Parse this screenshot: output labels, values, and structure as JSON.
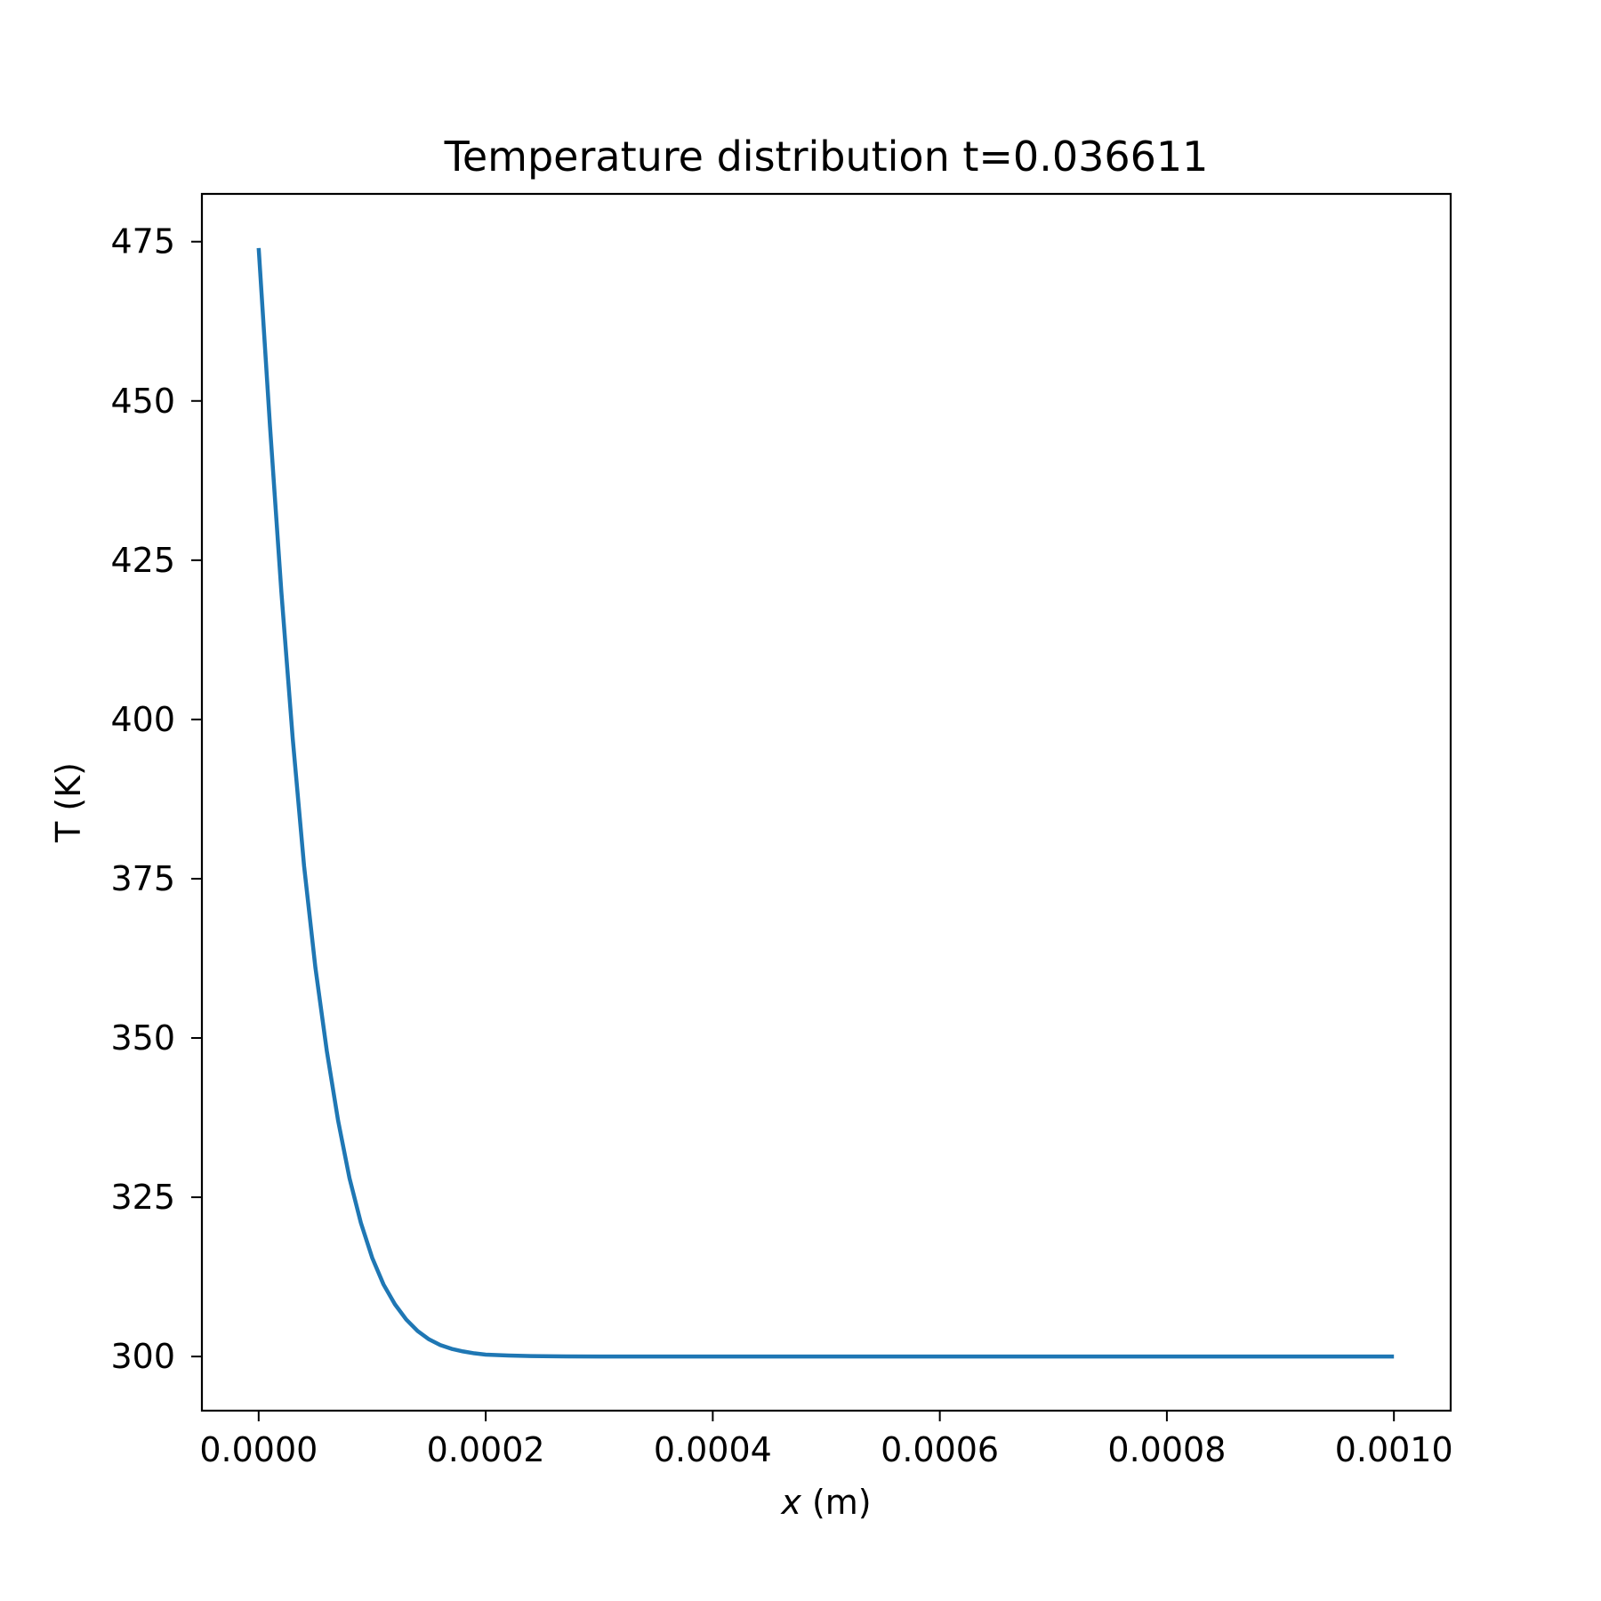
{
  "chart_data": {
    "type": "line",
    "title": "Temperature distribution t=0.036611",
    "xlabel_var": "x",
    "xlabel_unit": " (m)",
    "ylabel": "T (K)",
    "xlim": [
      -5e-05,
      0.00105
    ],
    "ylim": [
      291.5,
      482.5
    ],
    "xticks": [
      0.0,
      0.0002,
      0.0004,
      0.0006,
      0.0008,
      0.001
    ],
    "xtick_labels": [
      "0.0000",
      "0.0002",
      "0.0004",
      "0.0006",
      "0.0008",
      "0.0010"
    ],
    "yticks": [
      300,
      325,
      350,
      375,
      400,
      425,
      450,
      475
    ],
    "ytick_labels": [
      "300",
      "325",
      "350",
      "375",
      "400",
      "425",
      "450",
      "475"
    ],
    "grid": false,
    "series": [
      {
        "color": "#1f77b4",
        "x": [
          0.0,
          1e-05,
          2e-05,
          3e-05,
          4e-05,
          5e-05,
          6e-05,
          7e-05,
          8e-05,
          9e-05,
          0.0001,
          0.00011,
          0.00012,
          0.00013,
          0.00014,
          0.00015,
          0.00016,
          0.00017,
          0.00018,
          0.00019,
          0.0002,
          0.00022,
          0.00024,
          0.00026,
          0.0003,
          0.0004,
          0.0005,
          0.0006,
          0.0007,
          0.0008,
          0.0009,
          0.001
        ],
        "y": [
          474,
          446,
          420,
          397,
          377,
          361,
          348,
          337,
          328,
          321,
          315.5,
          311.3,
          308.2,
          305.8,
          304.0,
          302.7,
          301.8,
          301.2,
          300.8,
          300.5,
          300.3,
          300.15,
          300.07,
          300.03,
          300,
          300,
          300,
          300,
          300,
          300,
          300,
          300
        ]
      }
    ]
  }
}
